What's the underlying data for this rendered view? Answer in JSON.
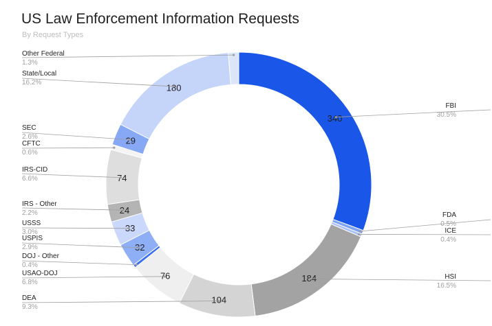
{
  "title": "US Law Enforcement Information Requests",
  "subtitle": "By Request Types",
  "chart_data": {
    "type": "pie",
    "variant": "donut",
    "title": "US Law Enforcement Information Requests",
    "subtitle": "By Request Types",
    "legend": "none",
    "slices": [
      {
        "label": "FBI",
        "value": 340,
        "percent": "30.5%",
        "value_label": "340",
        "color": "#1a56e8"
      },
      {
        "label": "FDA",
        "value": 5,
        "percent": "0.5%",
        "value_label": "",
        "color": "#7fa3f5"
      },
      {
        "label": "ICE",
        "value": 4,
        "percent": "0.4%",
        "value_label": "",
        "color": "#a9c1f7"
      },
      {
        "label": "HSI",
        "value": 184,
        "percent": "16.5%",
        "value_label": "184",
        "color": "#a3a3a3"
      },
      {
        "label": "DEA",
        "value": 104,
        "percent": "9.3%",
        "value_label": "104",
        "color": "#d4d4d4"
      },
      {
        "label": "USAO-DOJ",
        "value": 76,
        "percent": "6.8%",
        "value_label": "76",
        "color": "#efefef"
      },
      {
        "label": "DOJ - Other",
        "value": 4,
        "percent": "0.4%",
        "value_label": "",
        "color": "#3a6ef0"
      },
      {
        "label": "USPIS",
        "value": 32,
        "percent": "2.9%",
        "value_label": "32",
        "color": "#8eaef5"
      },
      {
        "label": "USSS",
        "value": 33,
        "percent": "3.0%",
        "value_label": "33",
        "color": "#c9d8fb"
      },
      {
        "label": "IRS - Other",
        "value": 24,
        "percent": "2.2%",
        "value_label": "24",
        "color": "#b4b4b4"
      },
      {
        "label": "IRS-CID",
        "value": 74,
        "percent": "6.6%",
        "value_label": "74",
        "color": "#dedede"
      },
      {
        "label": "CFTC",
        "value": 7,
        "percent": "0.6%",
        "value_label": "",
        "color": "#f4f4f4"
      },
      {
        "label": "SEC",
        "value": 29,
        "percent": "2.6%",
        "value_label": "29",
        "color": "#86a8f5"
      },
      {
        "label": "State/Local",
        "value": 180,
        "percent": "16.2%",
        "value_label": "180",
        "color": "#c5d5fa"
      },
      {
        "label": "Other Federal",
        "value": 14,
        "percent": "1.3%",
        "value_label": "",
        "color": "#dce6fb"
      }
    ]
  }
}
